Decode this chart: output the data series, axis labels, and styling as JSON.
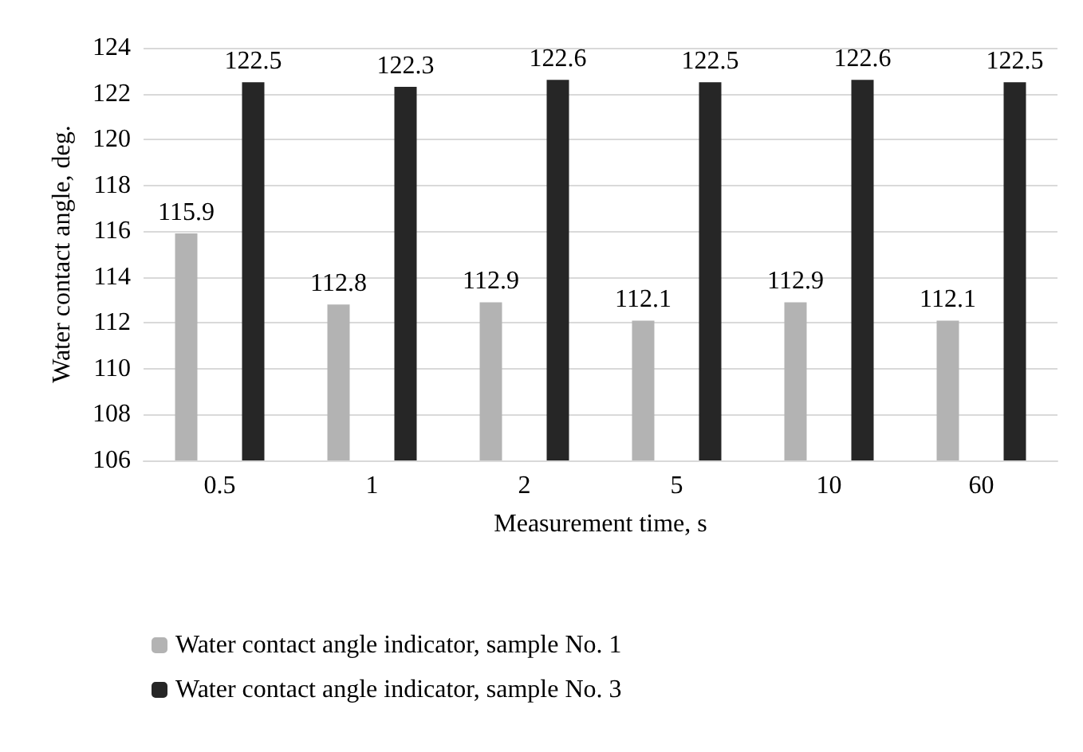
{
  "chart_data": {
    "type": "bar",
    "xlabel": "Measurement time, s",
    "ylabel": "Water contact angle, deg.",
    "categories": [
      "0.5",
      "1",
      "2",
      "5",
      "10",
      "60"
    ],
    "series": [
      {
        "name": "Water contact angle indicator, sample No. 1",
        "color": "#b3b3b3",
        "values": [
          115.9,
          112.8,
          112.9,
          112.1,
          112.9,
          112.1
        ]
      },
      {
        "name": "Water contact angle indicator, sample No. 3",
        "color": "#262626",
        "values": [
          122.5,
          122.3,
          122.6,
          122.5,
          122.6,
          122.5
        ]
      }
    ],
    "ylim": [
      106,
      124
    ],
    "yticks": [
      106,
      108,
      110,
      112,
      114,
      116,
      118,
      120,
      122,
      124
    ],
    "grid": "y",
    "legend": "bottom",
    "data_labels": true
  }
}
